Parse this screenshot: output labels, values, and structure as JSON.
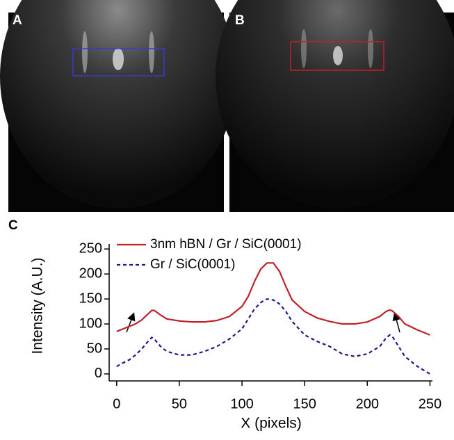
{
  "panels": {
    "a": "A",
    "b": "B",
    "c": "C"
  },
  "chart_data": {
    "type": "line",
    "xlabel": "X (pixels)",
    "ylabel": "Intensity (A.U.)",
    "xlim": [
      -6,
      252
    ],
    "ylim": [
      -14,
      260
    ],
    "xticks": [
      0,
      50,
      100,
      150,
      200,
      250
    ],
    "yticks": [
      0,
      50,
      100,
      150,
      200,
      250
    ],
    "x": [
      0,
      5,
      10,
      15,
      20,
      25,
      28,
      30,
      35,
      40,
      50,
      60,
      70,
      80,
      90,
      100,
      105,
      110,
      115,
      120,
      125,
      130,
      135,
      140,
      150,
      160,
      170,
      180,
      190,
      200,
      210,
      215,
      218,
      220,
      225,
      230,
      240,
      250
    ],
    "series": [
      {
        "name": "3nm hBN / Gr / SiC(0001)",
        "color": "#c0202a",
        "dash": false,
        "values": [
          85,
          90,
          95,
          100,
          108,
          120,
          127,
          127,
          118,
          110,
          106,
          104,
          104,
          107,
          115,
          135,
          155,
          185,
          210,
          222,
          222,
          205,
          175,
          148,
          125,
          112,
          105,
          100,
          100,
          104,
          115,
          125,
          128,
          126,
          115,
          100,
          88,
          78
        ]
      },
      {
        "name": "Gr / SiC(0001)",
        "color": "#1a1a8c",
        "dash": true,
        "values": [
          15,
          22,
          28,
          38,
          50,
          65,
          73,
          70,
          55,
          45,
          38,
          38,
          45,
          55,
          70,
          90,
          110,
          130,
          143,
          150,
          148,
          140,
          125,
          105,
          78,
          65,
          55,
          40,
          35,
          40,
          55,
          72,
          78,
          75,
          55,
          35,
          15,
          0
        ]
      }
    ]
  }
}
